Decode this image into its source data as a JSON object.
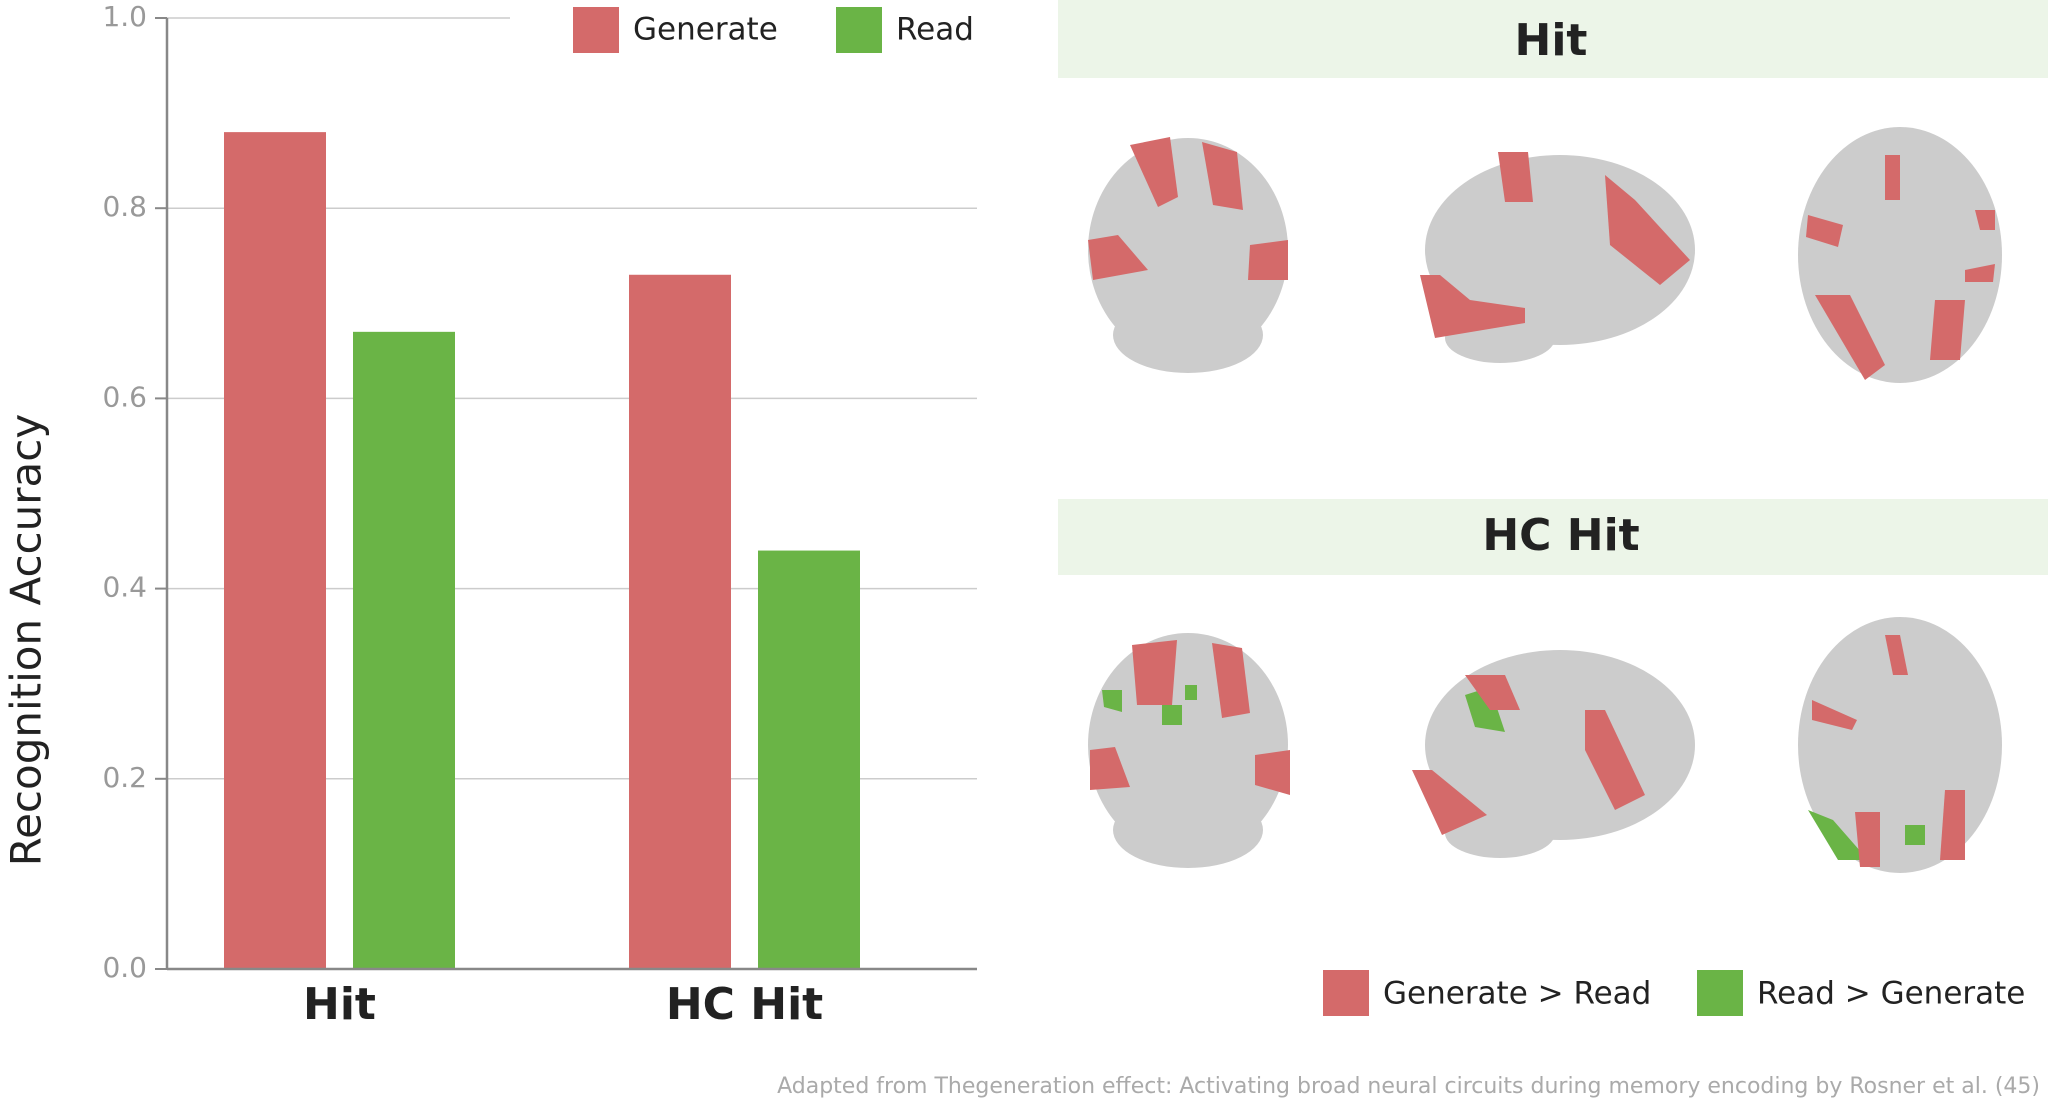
{
  "chart_data": {
    "type": "bar",
    "y_label": "Recognition Accuracy",
    "categories": [
      "Hit",
      "HC Hit"
    ],
    "series": [
      {
        "name": "Generate",
        "color": "#d46a6a",
        "values": [
          0.88,
          0.73
        ]
      },
      {
        "name": "Read",
        "color": "#6ab446",
        "values": [
          0.67,
          0.44
        ]
      }
    ],
    "ylim": [
      0,
      1
    ],
    "yticks": [
      {
        "value": 0,
        "label": "0.0"
      },
      0.2,
      0.4,
      0.6,
      0.8,
      {
        "value": 1,
        "label": "1.0"
      }
    ],
    "grid": true
  },
  "brain_panels": {
    "titles": [
      "Hit",
      "HC Hit"
    ],
    "legend": [
      {
        "label": "Generate > Read",
        "color": "#d46a6a"
      },
      {
        "label": "Read > Generate",
        "color": "#6ab446"
      }
    ]
  },
  "caption": "Adapted from Thegeneration effect: Activating broad neural circuits during memory encoding by Rosner et al. (45)"
}
